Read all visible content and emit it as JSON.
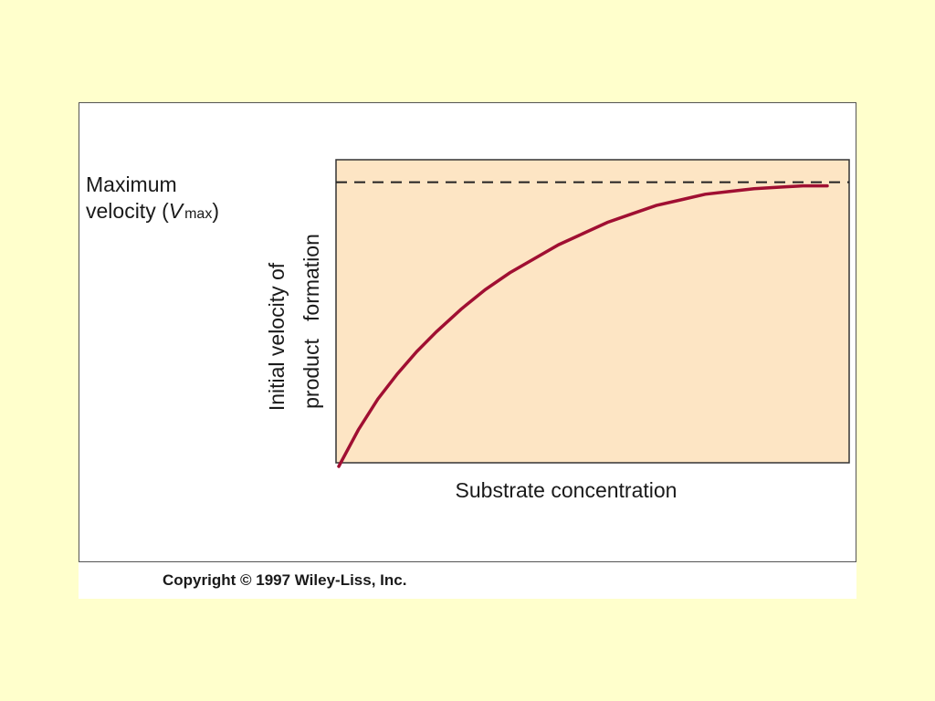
{
  "chart_data": {
    "type": "line",
    "title": "",
    "xlabel": "Substrate concentration",
    "ylabel_line1": "Initial velocity of",
    "ylabel_line2": "product   formation",
    "xlim": [
      0,
      1
    ],
    "ylim": [
      0,
      1.08
    ],
    "grid": false,
    "legend": "none",
    "series": [
      {
        "color": "#a00f32",
        "x": [
          0,
          0.04,
          0.08,
          0.12,
          0.16,
          0.2,
          0.25,
          0.3,
          0.35,
          0.4,
          0.45,
          0.5,
          0.55,
          0.6,
          0.65,
          0.7,
          0.75,
          0.8,
          0.85,
          0.9,
          0.95,
          1.0
        ],
        "y": [
          0,
          0.13,
          0.24,
          0.33,
          0.41,
          0.48,
          0.56,
          0.63,
          0.69,
          0.74,
          0.79,
          0.83,
          0.87,
          0.9,
          0.93,
          0.95,
          0.97,
          0.98,
          0.99,
          0.995,
          1.0,
          1.0
        ]
      }
    ],
    "reference_lines": [
      {
        "value": 1.0,
        "style": "dashed",
        "label_line1": "Maximum",
        "label_line2_prefix": "velocity (",
        "label_italic": "V",
        "label_subscript": "max",
        "label_suffix": ")"
      }
    ],
    "plot_background": "#fde5c4",
    "dashed_color": "#222222"
  },
  "footer": {
    "copyright": "Copyright © 1997 Wiley-Liss, Inc."
  }
}
